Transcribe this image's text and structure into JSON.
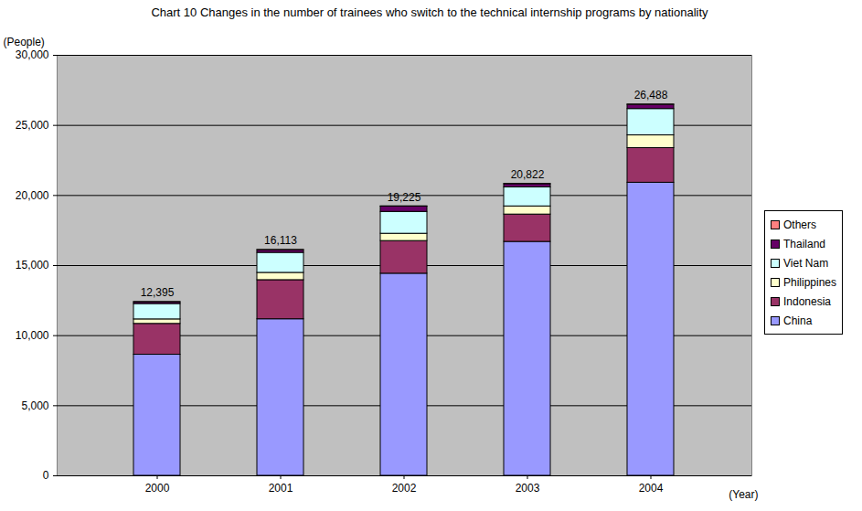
{
  "chart_data": {
    "type": "bar",
    "title": "Chart 10 Changes in the number of trainees who switch to the technical internship programs by nationality",
    "y_label": "(People)",
    "x_label": "(Year)",
    "categories": [
      "2000",
      "2001",
      "2002",
      "2003",
      "2004"
    ],
    "series": [
      {
        "name": "China",
        "color": "#9999ff",
        "values": [
          8640,
          11170,
          14420,
          16690,
          20910
        ]
      },
      {
        "name": "Indonesia",
        "color": "#993366",
        "values": [
          2200,
          2790,
          2330,
          1950,
          2470
        ]
      },
      {
        "name": "Philippines",
        "color": "#ffffcc",
        "values": [
          320,
          520,
          520,
          580,
          910
        ]
      },
      {
        "name": "Viet Nam",
        "color": "#ccffff",
        "values": [
          1100,
          1430,
          1560,
          1360,
          1880
        ]
      },
      {
        "name": "Thailand",
        "color": "#660066",
        "values": [
          130,
          190,
          380,
          230,
          300
        ]
      },
      {
        "name": "Others",
        "color": "#ff8080",
        "values": [
          5,
          13,
          15,
          12,
          18
        ]
      }
    ],
    "totals": [
      12395,
      16113,
      19225,
      20822,
      26488
    ],
    "total_labels": [
      "12,395",
      "16,113",
      "19,225",
      "20,822",
      "26,488"
    ],
    "stacked": true,
    "grid": true,
    "legend": "right",
    "ylim": [
      0,
      30000
    ],
    "yticks": [
      0,
      {
        "value": 5000,
        "label": "5,000"
      },
      {
        "value": 10000,
        "label": "10,000"
      },
      {
        "value": 15000,
        "label": "15,000"
      },
      {
        "value": 20000,
        "label": "20,000"
      },
      {
        "value": 25000,
        "label": "25,000"
      },
      {
        "value": 30000,
        "label": "30,000"
      }
    ]
  }
}
